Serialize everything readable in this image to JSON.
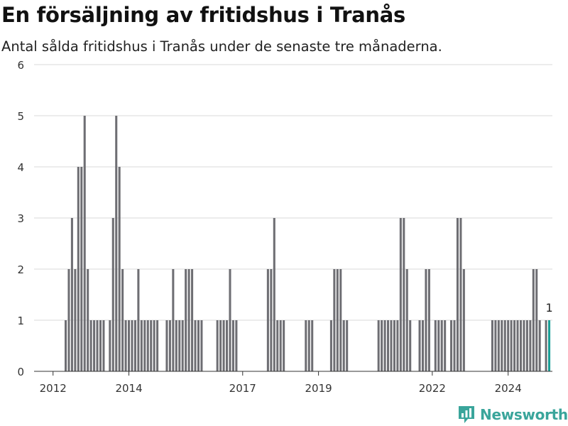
{
  "title": "En försäljning av fritidshus i Tranås",
  "subtitle": "Antal sålda fritidshus i Tranås under de senaste tre månaderna.",
  "brand": {
    "name": "Newsworthy",
    "color": "#3aa59b",
    "icon": "newsworthy-logo-icon"
  },
  "colors": {
    "bar": "#6e6e73",
    "highlight": "#1a9e96",
    "grid": "#d9d9d9"
  },
  "chart_data": {
    "type": "bar",
    "title": "En försäljning av fritidshus i Tranås",
    "subtitle": "Antal sålda fritidshus i Tranås under de senaste tre månaderna.",
    "xlabel": "",
    "ylabel": "",
    "ylim": [
      0,
      6
    ],
    "yticks": [
      "0",
      "1",
      "2",
      "3",
      "4",
      "5",
      "6"
    ],
    "xlim": [
      "2011-07",
      "2025-03"
    ],
    "xticks": [
      {
        "label": "2012",
        "date": "2012-01"
      },
      {
        "label": "2014",
        "date": "2014-01"
      },
      {
        "label": "2017",
        "date": "2017-01"
      },
      {
        "label": "2019",
        "date": "2019-01"
      },
      {
        "label": "2022",
        "date": "2022-01"
      },
      {
        "label": "2024",
        "date": "2024-01"
      }
    ],
    "grid": true,
    "highlight": {
      "label": "1",
      "index": -1
    },
    "series": [
      {
        "x": [
          "2012-05",
          "2012-06",
          "2012-07",
          "2012-08",
          "2012-09",
          "2012-10",
          "2012-11",
          "2012-12",
          "2013-01",
          "2013-02",
          "2013-03",
          "2013-04",
          "2013-05",
          "2013-07",
          "2013-08",
          "2013-09",
          "2013-10",
          "2013-11",
          "2013-12",
          "2014-01",
          "2014-02",
          "2014-03",
          "2014-04",
          "2014-05",
          "2014-06",
          "2014-07",
          "2014-08",
          "2014-09",
          "2014-10",
          "2015-01",
          "2015-02",
          "2015-03",
          "2015-04",
          "2015-05",
          "2015-06",
          "2015-07",
          "2015-08",
          "2015-09",
          "2015-10",
          "2015-11",
          "2015-12",
          "2016-05",
          "2016-06",
          "2016-07",
          "2016-08",
          "2016-09",
          "2016-10",
          "2016-11",
          "2017-09",
          "2017-10",
          "2017-11",
          "2017-12",
          "2018-01",
          "2018-02",
          "2018-09",
          "2018-10",
          "2018-11",
          "2019-05",
          "2019-06",
          "2019-07",
          "2019-08",
          "2019-09",
          "2019-10",
          "2020-08",
          "2020-09",
          "2020-10",
          "2020-11",
          "2020-12",
          "2021-01",
          "2021-02",
          "2021-03",
          "2021-04",
          "2021-05",
          "2021-06",
          "2021-09",
          "2021-10",
          "2021-11",
          "2021-12",
          "2022-02",
          "2022-03",
          "2022-04",
          "2022-05",
          "2022-07",
          "2022-08",
          "2022-09",
          "2022-10",
          "2022-11",
          "2023-08",
          "2023-09",
          "2023-10",
          "2023-11",
          "2023-12",
          "2024-01",
          "2024-02",
          "2024-03",
          "2024-04",
          "2024-05",
          "2024-06",
          "2024-07",
          "2024-08",
          "2024-09",
          "2024-10",
          "2024-11",
          "2025-01",
          "2025-02"
        ],
        "values": [
          1,
          2,
          3,
          2,
          4,
          4,
          5,
          2,
          1,
          1,
          1,
          1,
          1,
          1,
          3,
          5,
          4,
          2,
          1,
          1,
          1,
          1,
          2,
          1,
          1,
          1,
          1,
          1,
          1,
          1,
          1,
          2,
          1,
          1,
          1,
          2,
          2,
          2,
          1,
          1,
          1,
          1,
          1,
          1,
          1,
          2,
          1,
          1,
          2,
          2,
          3,
          1,
          1,
          1,
          1,
          1,
          1,
          1,
          2,
          2,
          2,
          1,
          1,
          1,
          1,
          1,
          1,
          1,
          1,
          1,
          3,
          3,
          2,
          1,
          1,
          1,
          2,
          2,
          1,
          1,
          1,
          1,
          1,
          1,
          3,
          3,
          2,
          1,
          1,
          1,
          1,
          1,
          1,
          1,
          1,
          1,
          1,
          1,
          1,
          1,
          2,
          2,
          1,
          1,
          1
        ]
      }
    ]
  }
}
